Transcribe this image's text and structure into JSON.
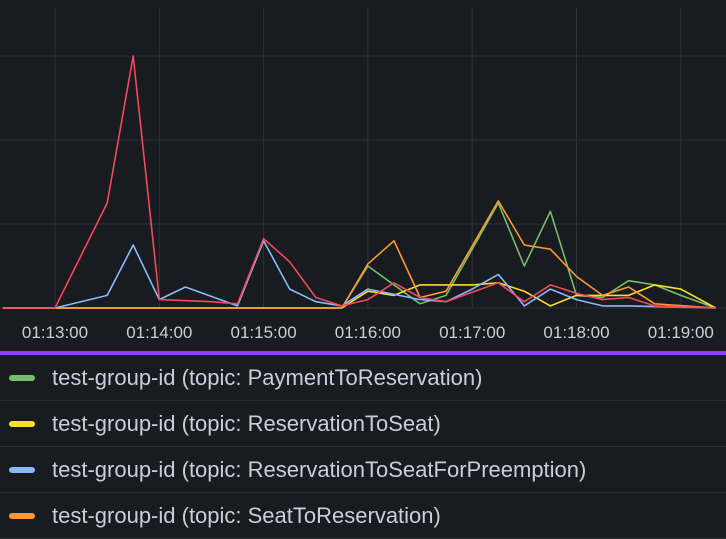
{
  "chart_data": {
    "type": "line",
    "title": "",
    "xlabel": "",
    "ylabel": "",
    "x_ticks": [
      "01:13:00",
      "01:14:00",
      "01:15:00",
      "01:16:00",
      "01:17:00",
      "01:18:00",
      "01:19:00"
    ],
    "x_range": [
      "01:12:30",
      "01:19:20"
    ],
    "y_range": [
      0,
      1.2
    ],
    "grid": true,
    "legend_position": "bottom",
    "series": [
      {
        "name": "test-group-id (topic: PaymentToReservation)",
        "color": "#73bf69",
        "points": [
          [
            "01:12:30",
            0
          ],
          [
            "01:15:45",
            0
          ],
          [
            "01:16:00",
            0.2
          ],
          [
            "01:16:30",
            0.02
          ],
          [
            "01:16:45",
            0.06
          ],
          [
            "01:17:15",
            0.5
          ],
          [
            "01:17:30",
            0.2
          ],
          [
            "01:17:45",
            0.46
          ],
          [
            "01:18:00",
            0.06
          ],
          [
            "01:18:15",
            0.05
          ],
          [
            "01:18:30",
            0.13
          ],
          [
            "01:18:45",
            0.11
          ],
          [
            "01:19:00",
            0.06
          ],
          [
            "01:19:20",
            0
          ]
        ]
      },
      {
        "name": "test-group-id (topic: ReservationToSeat)",
        "color": "#fade2a",
        "points": [
          [
            "01:12:30",
            0
          ],
          [
            "01:15:45",
            0
          ],
          [
            "01:16:00",
            0.08
          ],
          [
            "01:16:15",
            0.06
          ],
          [
            "01:16:30",
            0.11
          ],
          [
            "01:17:00",
            0.11
          ],
          [
            "01:17:15",
            0.12
          ],
          [
            "01:17:30",
            0.08
          ],
          [
            "01:17:45",
            0.01
          ],
          [
            "01:18:00",
            0.06
          ],
          [
            "01:18:30",
            0.06
          ],
          [
            "01:18:45",
            0.11
          ],
          [
            "01:19:00",
            0.09
          ],
          [
            "01:19:20",
            0
          ]
        ]
      },
      {
        "name": "test-group-id (topic: ReservationToSeatForPreemption)",
        "color": "#8ab8ff",
        "points": [
          [
            "01:12:30",
            0
          ],
          [
            "01:13:00",
            0
          ],
          [
            "01:13:30",
            0.06
          ],
          [
            "01:13:45",
            0.3
          ],
          [
            "01:14:00",
            0.04
          ],
          [
            "01:14:15",
            0.1
          ],
          [
            "01:14:45",
            0.01
          ],
          [
            "01:15:00",
            0.32
          ],
          [
            "01:15:15",
            0.09
          ],
          [
            "01:15:30",
            0.03
          ],
          [
            "01:15:45",
            0.01
          ],
          [
            "01:16:00",
            0.09
          ],
          [
            "01:16:30",
            0.04
          ],
          [
            "01:16:45",
            0.03
          ],
          [
            "01:17:00",
            0.09
          ],
          [
            "01:17:15",
            0.16
          ],
          [
            "01:17:30",
            0.01
          ],
          [
            "01:17:45",
            0.09
          ],
          [
            "01:18:00",
            0.04
          ],
          [
            "01:18:15",
            0.01
          ],
          [
            "01:18:30",
            0.01
          ],
          [
            "01:19:20",
            0
          ]
        ]
      },
      {
        "name": "test-group-id (topic: SeatToReservation)",
        "color": "#ff9830",
        "points": [
          [
            "01:12:30",
            0
          ],
          [
            "01:15:45",
            0
          ],
          [
            "01:16:00",
            0.21
          ],
          [
            "01:16:15",
            0.32
          ],
          [
            "01:16:30",
            0.05
          ],
          [
            "01:16:45",
            0.08
          ],
          [
            "01:17:15",
            0.51
          ],
          [
            "01:17:30",
            0.3
          ],
          [
            "01:17:45",
            0.28
          ],
          [
            "01:18:00",
            0.15
          ],
          [
            "01:18:15",
            0.06
          ],
          [
            "01:18:30",
            0.1
          ],
          [
            "01:18:45",
            0.02
          ],
          [
            "01:19:20",
            0
          ]
        ]
      },
      {
        "name": "",
        "color": "#f2495c",
        "points": [
          [
            "01:12:30",
            0
          ],
          [
            "01:13:00",
            0
          ],
          [
            "01:13:30",
            0.5
          ],
          [
            "01:13:45",
            1.2
          ],
          [
            "01:14:00",
            0.04
          ],
          [
            "01:14:30",
            0.03
          ],
          [
            "01:14:45",
            0.02
          ],
          [
            "01:15:00",
            0.33
          ],
          [
            "01:15:15",
            0.22
          ],
          [
            "01:15:30",
            0.05
          ],
          [
            "01:15:45",
            0.01
          ],
          [
            "01:16:00",
            0.04
          ],
          [
            "01:16:15",
            0.12
          ],
          [
            "01:16:30",
            0.05
          ],
          [
            "01:16:45",
            0.03
          ],
          [
            "01:17:15",
            0.12
          ],
          [
            "01:17:30",
            0.03
          ],
          [
            "01:17:45",
            0.11
          ],
          [
            "01:18:00",
            0.07
          ],
          [
            "01:18:15",
            0.04
          ],
          [
            "01:18:30",
            0.05
          ],
          [
            "01:18:45",
            0.01
          ],
          [
            "01:19:20",
            0
          ]
        ]
      }
    ]
  },
  "legend": {
    "items": [
      {
        "label": "test-group-id (topic: PaymentToReservation)",
        "color": "#73bf69"
      },
      {
        "label": "test-group-id (topic: ReservationToSeat)",
        "color": "#fade2a"
      },
      {
        "label": "test-group-id (topic: ReservationToSeatForPreemption)",
        "color": "#8ab8ff"
      },
      {
        "label": "test-group-id (topic: SeatToReservation)",
        "color": "#ff9830"
      }
    ]
  }
}
